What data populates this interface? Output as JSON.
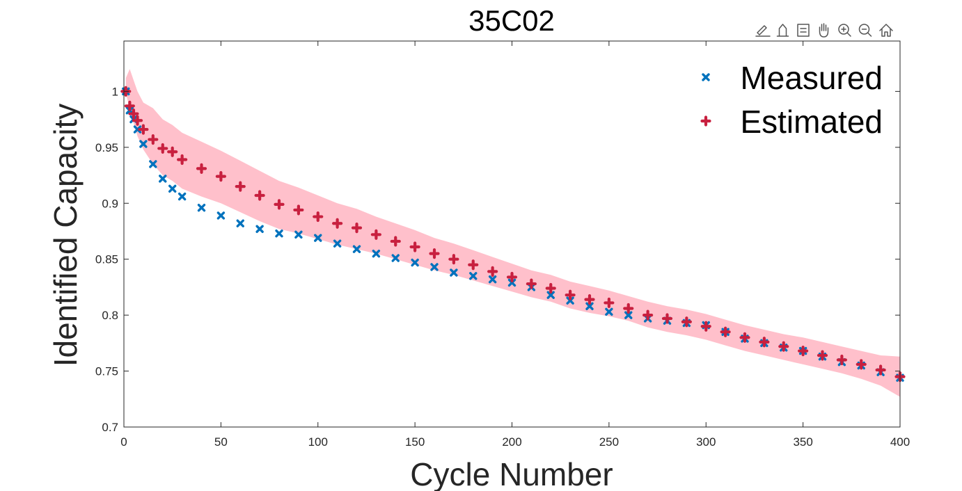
{
  "toolbar": {
    "icons": [
      "brush-icon",
      "export-icon",
      "datatips-icon",
      "pan-icon",
      "zoom-in-icon",
      "zoom-out-icon",
      "home-icon"
    ]
  },
  "colors": {
    "measured": "#0072BD",
    "estimated": "#C8203F",
    "band": "#FFC0CB",
    "axis": "#262626"
  },
  "chart_data": {
    "type": "scatter",
    "title": "35C02",
    "xlabel": "Cycle Number",
    "ylabel": "Identified Capacity",
    "xlim": [
      0,
      400
    ],
    "ylim": [
      0.7,
      1.045
    ],
    "xticks": [
      0,
      50,
      100,
      150,
      200,
      250,
      300,
      350,
      400
    ],
    "xtick_labels": [
      "0",
      "50",
      "100",
      "150",
      "200",
      "250",
      "300",
      "350",
      "400"
    ],
    "yticks": [
      0.7,
      0.75,
      0.8,
      0.85,
      0.9,
      0.95,
      1.0
    ],
    "ytick_labels": [
      "0.7",
      "0.75",
      "0.8",
      "0.85",
      "0.9",
      "0.95",
      "1"
    ],
    "grid": false,
    "legend_position": "top-right",
    "series": [
      {
        "name": "Measured",
        "marker": "x",
        "x": [
          1,
          3,
          5,
          7,
          10,
          15,
          20,
          25,
          30,
          40,
          50,
          60,
          70,
          80,
          90,
          100,
          110,
          120,
          130,
          140,
          150,
          160,
          170,
          180,
          190,
          200,
          210,
          220,
          230,
          240,
          250,
          260,
          270,
          280,
          290,
          300,
          310,
          320,
          330,
          340,
          350,
          360,
          370,
          380,
          390,
          400
        ],
        "y": [
          1.0,
          0.983,
          0.975,
          0.966,
          0.953,
          0.935,
          0.922,
          0.913,
          0.906,
          0.896,
          0.889,
          0.882,
          0.877,
          0.873,
          0.872,
          0.869,
          0.864,
          0.859,
          0.855,
          0.851,
          0.847,
          0.843,
          0.838,
          0.835,
          0.832,
          0.829,
          0.825,
          0.818,
          0.813,
          0.808,
          0.803,
          0.8,
          0.797,
          0.795,
          0.793,
          0.791,
          0.785,
          0.779,
          0.775,
          0.771,
          0.768,
          0.763,
          0.758,
          0.755,
          0.749,
          0.744
        ]
      },
      {
        "name": "Estimated",
        "marker": "plus",
        "x": [
          1,
          3,
          5,
          7,
          10,
          15,
          20,
          25,
          30,
          40,
          50,
          60,
          70,
          80,
          90,
          100,
          110,
          120,
          130,
          140,
          150,
          160,
          170,
          180,
          190,
          200,
          210,
          220,
          230,
          240,
          250,
          260,
          270,
          280,
          290,
          300,
          310,
          320,
          330,
          340,
          350,
          360,
          370,
          380,
          390,
          400
        ],
        "y": [
          1.0,
          0.987,
          0.98,
          0.974,
          0.966,
          0.957,
          0.949,
          0.946,
          0.939,
          0.931,
          0.924,
          0.915,
          0.907,
          0.899,
          0.894,
          0.888,
          0.882,
          0.878,
          0.872,
          0.866,
          0.861,
          0.855,
          0.85,
          0.845,
          0.839,
          0.834,
          0.828,
          0.824,
          0.818,
          0.814,
          0.811,
          0.806,
          0.8,
          0.797,
          0.794,
          0.79,
          0.785,
          0.78,
          0.776,
          0.772,
          0.768,
          0.764,
          0.76,
          0.756,
          0.751,
          0.745
        ]
      }
    ],
    "band": {
      "x": [
        1,
        3,
        5,
        7,
        10,
        15,
        20,
        25,
        30,
        40,
        50,
        60,
        70,
        80,
        90,
        100,
        110,
        120,
        130,
        140,
        150,
        160,
        170,
        180,
        190,
        200,
        210,
        220,
        230,
        240,
        250,
        260,
        270,
        280,
        290,
        300,
        310,
        320,
        330,
        340,
        350,
        360,
        370,
        380,
        390,
        400
      ],
      "upper": [
        1.012,
        1.02,
        1.01,
        1.0,
        0.99,
        0.985,
        0.975,
        0.97,
        0.963,
        0.955,
        0.947,
        0.938,
        0.929,
        0.92,
        0.914,
        0.907,
        0.9,
        0.895,
        0.888,
        0.882,
        0.876,
        0.869,
        0.864,
        0.858,
        0.852,
        0.846,
        0.84,
        0.836,
        0.83,
        0.826,
        0.822,
        0.817,
        0.812,
        0.808,
        0.805,
        0.801,
        0.796,
        0.791,
        0.787,
        0.783,
        0.78,
        0.776,
        0.772,
        0.768,
        0.764,
        0.763
      ],
      "lower": [
        0.998,
        0.985,
        0.972,
        0.96,
        0.948,
        0.935,
        0.925,
        0.92,
        0.913,
        0.906,
        0.9,
        0.892,
        0.884,
        0.877,
        0.873,
        0.868,
        0.863,
        0.859,
        0.855,
        0.85,
        0.845,
        0.84,
        0.836,
        0.831,
        0.826,
        0.821,
        0.816,
        0.812,
        0.806,
        0.802,
        0.799,
        0.795,
        0.789,
        0.785,
        0.782,
        0.778,
        0.773,
        0.768,
        0.764,
        0.76,
        0.756,
        0.752,
        0.748,
        0.743,
        0.737,
        0.727
      ]
    }
  }
}
